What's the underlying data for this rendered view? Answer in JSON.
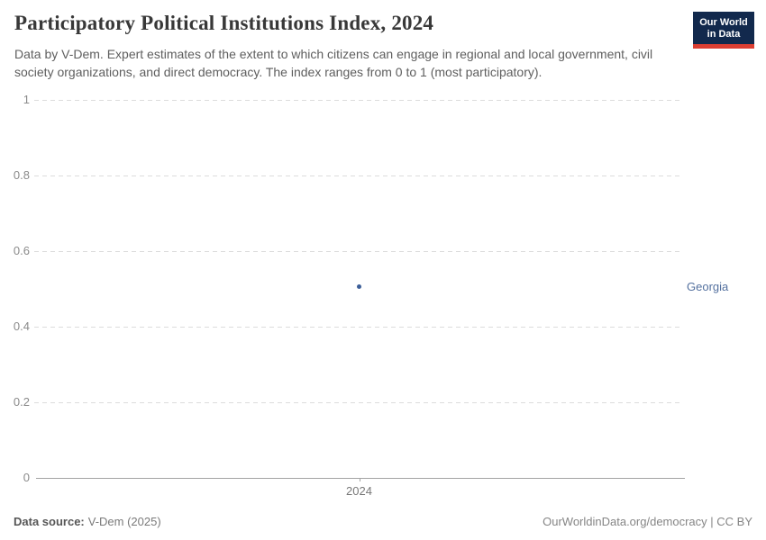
{
  "header": {
    "title": "Participatory Political Institutions Index, 2024",
    "subtitle": "Data by V-Dem. Expert estimates of the extent to which citizens can engage in regional and local government, civil society organizations, and direct democracy. The index ranges from 0 to 1 (most participatory).",
    "logo_line1": "Our World",
    "logo_line2": "in Data"
  },
  "footer": {
    "source_label": "Data source:",
    "source_value": "V-Dem (2025)",
    "link": "OurWorldinData.org/democracy | CC BY"
  },
  "chart_data": {
    "type": "scatter",
    "title": "Participatory Political Institutions Index, 2024",
    "x": [
      2024
    ],
    "xtick_labels": [
      "2024"
    ],
    "series": [
      {
        "name": "Georgia",
        "values": [
          0.505
        ]
      }
    ],
    "ylim": [
      0,
      1
    ],
    "yticks": [
      0,
      0.2,
      0.4,
      0.6,
      0.8,
      1
    ],
    "xlabel": "",
    "ylabel": "",
    "grid": "horizontal-dashed",
    "legend_position": "entity-label-right",
    "colors": {
      "point": "#3c5e98",
      "label": "#54719f",
      "logo_navy": "#12294d",
      "logo_red": "#dc3e32"
    }
  }
}
